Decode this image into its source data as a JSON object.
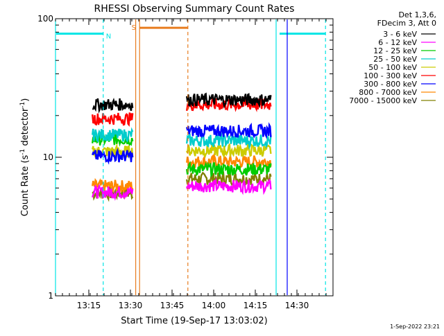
{
  "title": "RHESSI Observing Summary Count Rates",
  "footer_timestamp": "1-Sep-2022 23:21",
  "chart_data": {
    "type": "line",
    "title": "RHESSI Observing Summary Count Rates",
    "xlabel": "Start Time (19-Sep-17 13:03:02)",
    "ylabel_main": "Count Rate (s",
    "ylabel_sup": "-1",
    "ylabel_tail": " detector",
    "ylabel_end": ")",
    "yscale": "log",
    "ylim": [
      1,
      100
    ],
    "xlim_minutes": [
      0,
      100
    ],
    "y_ticks": [
      {
        "value": 1,
        "label": "1"
      },
      {
        "value": 10,
        "label": "10"
      },
      {
        "value": 100,
        "label": "100"
      }
    ],
    "x_ticks": [
      {
        "minutes": 12,
        "label": "13:15"
      },
      {
        "minutes": 27,
        "label": "13:30"
      },
      {
        "minutes": 42,
        "label": "13:45"
      },
      {
        "minutes": 57,
        "label": "14:00"
      },
      {
        "minutes": 72,
        "label": "14:15"
      },
      {
        "minutes": 87,
        "label": "14:30"
      }
    ],
    "legend_header": [
      "Det 1,3,6,",
      "FDecim 3, Att 0"
    ],
    "legend_placement": "top-right",
    "series": [
      {
        "name": "3 - 6 keV",
        "color": "#000000",
        "level_first": 24,
        "level_second": 26
      },
      {
        "name": "6 - 12 keV",
        "color": "#ff00ff",
        "level_first": 5.6,
        "level_second": 6.2
      },
      {
        "name": "12 - 25 keV",
        "color": "#00cc00",
        "level_first": 13.5,
        "level_second": 8.2
      },
      {
        "name": "25 - 50 keV",
        "color": "#00cccc",
        "level_first": 14.5,
        "level_second": 13.2
      },
      {
        "name": "50 - 100 keV",
        "color": "#cccc00",
        "level_first": 11,
        "level_second": 11.2
      },
      {
        "name": "100 - 300 keV",
        "color": "#ff0000",
        "level_first": 19,
        "level_second": 24
      },
      {
        "name": "300 - 800 keV",
        "color": "#0000ff",
        "level_first": 10.2,
        "level_second": 15.5
      },
      {
        "name": "800 - 7000 keV",
        "color": "#ff8800",
        "level_first": 6.2,
        "level_second": 9.3
      },
      {
        "name": "7000 - 15000 keV",
        "color": "#808000",
        "level_first": 5.5,
        "level_second": 7
      }
    ],
    "observation_segments": [
      {
        "start_minutes": 13.3,
        "end_minutes": 27.8
      },
      {
        "start_minutes": 47.3,
        "end_minutes": 77.6
      }
    ],
    "markers": [
      {
        "label": "N",
        "color": "#00e5e5",
        "start_minutes": 0,
        "end_minutes": 17.2,
        "level": 78
      },
      {
        "label": "S",
        "color": "#e87c1e",
        "start_minutes": 30,
        "end_minutes": 47.7,
        "level": 86
      },
      {
        "label": "",
        "color": "#00e5e5",
        "start_minutes": 80.5,
        "end_minutes": 97.3,
        "level": 78
      }
    ],
    "vertical_lines": [
      {
        "minutes": 0,
        "color": "#00e5e5",
        "style": "solid"
      },
      {
        "minutes": 17.2,
        "color": "#00e5e5",
        "style": "dashed"
      },
      {
        "minutes": 28.9,
        "color": "#e87c1e",
        "style": "solid"
      },
      {
        "minutes": 30.3,
        "color": "#e87c1e",
        "style": "solid"
      },
      {
        "minutes": 47.7,
        "color": "#e87c1e",
        "style": "dashed"
      },
      {
        "minutes": 79.5,
        "color": "#00e5e5",
        "style": "solid"
      },
      {
        "minutes": 83.5,
        "color": "#0000ff",
        "style": "solid"
      },
      {
        "minutes": 97.3,
        "color": "#00e5e5",
        "style": "dashed"
      }
    ]
  }
}
